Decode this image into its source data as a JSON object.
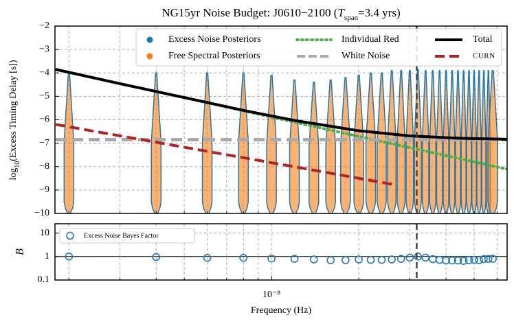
{
  "chart_data": [
    {
      "type": "violin",
      "title": [
        "NG15yr Noise Budget: J0610−2100 (",
        "T",
        "span",
        "=3.4 yrs)"
      ],
      "ylabel": [
        "log",
        "10",
        "(Excess Timing Delay [s])"
      ],
      "x": [
        2e-09,
        4e-09,
        6e-09,
        8e-09,
        1e-08,
        1.2e-08,
        1.4e-08,
        1.6e-08,
        1.8e-08,
        2e-08,
        2.2e-08,
        2.4e-08,
        2.6e-08,
        2.8e-08,
        3e-08,
        3.2e-08,
        3.4e-08,
        3.6e-08,
        3.8e-08,
        4e-08,
        4.2e-08,
        4.4e-08,
        4.6e-08,
        4.8e-08,
        5e-08,
        5.2e-08,
        5.4e-08,
        5.6e-08,
        5.8e-08
      ],
      "values": [
        -4.0,
        -4.0,
        -4.0,
        -4.0,
        -4.1,
        -4.3,
        -4.4,
        -4.3,
        -4.2,
        -4.1,
        -4.0,
        -4.0,
        -3.9,
        -3.9,
        -3.9,
        -3.85,
        -3.9,
        -3.9,
        -3.9,
        -3.9,
        -3.9,
        -3.9,
        -3.9,
        -3.9,
        -3.9,
        -3.9,
        -3.9,
        -3.9,
        -3.9
      ],
      "violin_series": [
        {
          "name": "Excess Noise Posteriors",
          "color": "#1f77b4"
        },
        {
          "name": "Free Spectral Posteriors",
          "color": "#ff7f0e"
        }
      ],
      "series": [
        {
          "name": "Individual Red",
          "color": "#4daf4a",
          "style": "dotted",
          "x": [
            1.8e-09,
            3e-09,
            5e-09,
            8e-09,
            1.2e-08,
            2e-08,
            3e-08,
            4.5e-08,
            6.5e-08
          ],
          "values": [
            -3.85,
            -4.46,
            -5.06,
            -5.62,
            -6.1,
            -6.71,
            -7.19,
            -7.67,
            -8.11
          ]
        },
        {
          "name": "White Noise",
          "color": "#aaaaaa",
          "style": "dashed",
          "x": [
            1.8e-09,
            6.5e-08
          ],
          "values": [
            -6.85,
            -6.85
          ]
        },
        {
          "name": "Total",
          "color": "#000000",
          "style": "solid",
          "x": [
            1.8e-09,
            3e-09,
            5e-09,
            8e-09,
            1.2e-08,
            2e-08,
            3e-08,
            4.5e-08,
            6.5e-08
          ],
          "values": [
            -3.85,
            -4.46,
            -5.05,
            -5.6,
            -6.03,
            -6.47,
            -6.69,
            -6.79,
            -6.83
          ]
        },
        {
          "name": "CURN",
          "color": "#b22222",
          "style": "dashed",
          "x": [
            1.8e-09,
            4e-09,
            8e-09,
            1.5e-08,
            2.7e-08
          ],
          "values": [
            -6.2,
            -6.96,
            -7.62,
            -8.22,
            -8.79
          ]
        }
      ],
      "vline": 3.17e-08,
      "xlog": true,
      "xlim": [
        1.79e-09,
        6.5e-08
      ],
      "xticks_minor": [
        2e-09,
        3e-09,
        4e-09,
        5e-09,
        6e-09,
        7e-09,
        8e-09,
        9e-09,
        2e-08,
        3e-08,
        4e-08,
        5e-08,
        6e-08
      ],
      "ylim": [
        -10,
        -2
      ],
      "yticks": [
        {
          "value": -10,
          "label": "−10"
        },
        {
          "value": -9,
          "label": "−9"
        },
        {
          "value": -8,
          "label": "−8"
        },
        {
          "value": -7,
          "label": "−7"
        },
        {
          "value": -6,
          "label": "−6"
        },
        {
          "value": -5,
          "label": "−5"
        },
        {
          "value": -4,
          "label": "−4"
        },
        {
          "value": -3,
          "label": "−3"
        },
        {
          "value": -2,
          "label": "−2"
        }
      ],
      "grid": true
    },
    {
      "type": "scatter",
      "xlabel": "Frequency (Hz)",
      "ylabel": "B",
      "x": [
        2e-09,
        4e-09,
        6e-09,
        8e-09,
        1e-08,
        1.2e-08,
        1.4e-08,
        1.6e-08,
        1.8e-08,
        2e-08,
        2.2e-08,
        2.4e-08,
        2.6e-08,
        2.8e-08,
        3e-08,
        3.2e-08,
        3.4e-08,
        3.6e-08,
        3.8e-08,
        4e-08,
        4.2e-08,
        4.4e-08,
        4.6e-08,
        4.8e-08,
        5e-08,
        5.2e-08,
        5.4e-08,
        5.6e-08,
        5.8e-08
      ],
      "series": [
        {
          "name": "Excess Noise Bayes Factor",
          "color": "#1f77b4",
          "values": [
            1.0,
            0.95,
            0.88,
            0.88,
            0.82,
            0.8,
            0.75,
            0.7,
            0.7,
            0.75,
            0.72,
            0.72,
            0.75,
            0.8,
            0.9,
            1.0,
            0.9,
            0.78,
            0.72,
            0.68,
            0.68,
            0.68,
            0.65,
            0.7,
            0.72,
            0.7,
            0.78,
            0.8,
            0.8
          ]
        }
      ],
      "hline": 1,
      "vline": 3.17e-08,
      "xlog": true,
      "xlim": [
        1.79e-09,
        6.5e-08
      ],
      "xticks": [
        {
          "value": 1e-08,
          "label": "10⁻⁸"
        }
      ],
      "xticks_minor": [
        2e-09,
        3e-09,
        4e-09,
        5e-09,
        6e-09,
        7e-09,
        8e-09,
        9e-09,
        2e-08,
        3e-08,
        4e-08,
        5e-08,
        6e-08
      ],
      "ylog": true,
      "ylim": [
        0.1,
        25
      ],
      "yticks": [
        0.1,
        1,
        10
      ],
      "grid": true
    }
  ]
}
